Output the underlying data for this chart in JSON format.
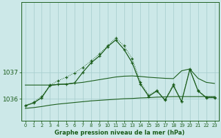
{
  "title": "Graphe pression niveau de la mer (hPa)",
  "bg_color": "#cce8e8",
  "grid_color": "#aacfcf",
  "line_color": "#1a5c1a",
  "xlim": [
    -0.5,
    23.5
  ],
  "ylim": [
    1035.2,
    1039.6
  ],
  "yticks": [
    1036,
    1037
  ],
  "xticks": [
    0,
    1,
    2,
    3,
    4,
    5,
    6,
    7,
    8,
    9,
    10,
    11,
    12,
    13,
    14,
    15,
    16,
    17,
    18,
    19,
    20,
    21,
    22,
    23
  ],
  "main_line": [
    1035.75,
    1035.85,
    1036.05,
    1036.5,
    1036.55,
    1036.55,
    1036.6,
    1037.0,
    1037.35,
    1037.6,
    1037.95,
    1038.2,
    1037.85,
    1037.35,
    1036.55,
    1036.1,
    1036.3,
    1035.95,
    1036.5,
    1035.9,
    1037.1,
    1036.3,
    1036.05,
    1036.05
  ],
  "dotted_line": [
    1035.75,
    1035.88,
    1036.1,
    1036.52,
    1036.68,
    1036.82,
    1036.97,
    1037.18,
    1037.42,
    1037.68,
    1037.98,
    1038.28,
    1037.98,
    1037.5,
    1036.62,
    1036.15,
    1036.32,
    1035.98,
    1036.55,
    1035.92,
    1037.12,
    1036.32,
    1036.07,
    1036.07
  ],
  "smooth_upper": [
    1036.52,
    1036.52,
    1036.52,
    1036.52,
    1036.54,
    1036.56,
    1036.59,
    1036.62,
    1036.67,
    1036.72,
    1036.77,
    1036.82,
    1036.85,
    1036.86,
    1036.84,
    1036.81,
    1036.79,
    1036.77,
    1036.76,
    1037.05,
    1037.12,
    1036.77,
    1036.62,
    1036.58
  ],
  "smooth_lower": [
    1035.65,
    1035.68,
    1035.72,
    1035.77,
    1035.81,
    1035.84,
    1035.87,
    1035.9,
    1035.93,
    1035.95,
    1035.97,
    1035.99,
    1036.01,
    1036.02,
    1036.04,
    1036.05,
    1036.07,
    1036.08,
    1036.09,
    1036.09,
    1036.09,
    1036.09,
    1036.09,
    1036.09
  ]
}
